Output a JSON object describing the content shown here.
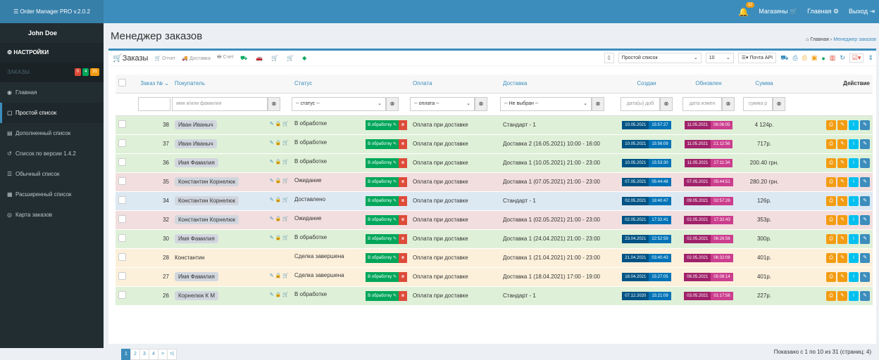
{
  "app": {
    "brand": "Order Manager PRO v.2.0.2"
  },
  "topnav": {
    "bell_count": "12",
    "shops": "Магазины",
    "home": "Главная",
    "exit": "Выход"
  },
  "sidebar": {
    "user": "John Doe",
    "settings": "НАСТРОЙКИ",
    "section": "ЗАКАЗЫ",
    "badges": [
      "0",
      "4",
      "31"
    ],
    "items": [
      {
        "label": "Главная",
        "icon": "dashboard-icon"
      },
      {
        "label": "Простой список",
        "icon": "file-icon"
      },
      {
        "label": "Дополненный список",
        "icon": "file-text-icon"
      },
      {
        "label": "Список по версии 1.4.2",
        "icon": "history-icon"
      },
      {
        "label": "Обычный список",
        "icon": "list-icon"
      },
      {
        "label": "Расширенный список",
        "icon": "table-icon"
      },
      {
        "label": "Карта заказов",
        "icon": "map-pin-icon"
      }
    ]
  },
  "page": {
    "title": "Менеджер заказов",
    "crumb_home": "Главная",
    "crumb_current": "Менеджер заказов"
  },
  "toolbar": {
    "orders": "Заказы",
    "report": "Отчет",
    "delivery": "Доставка",
    "invoice": "Счет",
    "view_select": "Простой список",
    "per_page": "10",
    "api": "Почта API"
  },
  "table": {
    "headers": {
      "order": "Заказ №",
      "buyer": "Покупатель",
      "status": "Статус",
      "payment": "Оплата",
      "delivery": "Доставка",
      "created": "Создан",
      "updated": "Обновлен",
      "sum": "Сумма",
      "action": "Действие"
    },
    "filters": {
      "buyer": "имя и/или фамилия",
      "status": "-- статус --",
      "payment": "-- оплата --",
      "delivery": "-- Не выбран --",
      "created": "дата(ы) доб",
      "updated": "дата измен",
      "sum": "сумма р"
    },
    "process_label": "В обработку",
    "rows": [
      {
        "id": "38",
        "buyer": "Иван Иваныч",
        "status": "В обработке",
        "payment": "Оплата при доставке",
        "delivery": "Стандарт - 1",
        "c_date": "10.05.2021",
        "c_time": "15:57:27",
        "u_date": "11.05.2021",
        "u_time": "06:06:05",
        "sum": "4 124р.",
        "color": "g",
        "icons": true
      },
      {
        "id": "37",
        "buyer": "Иван Иваныч",
        "status": "В обработке",
        "payment": "Оплата при доставке",
        "delivery": "Доставка 2 (16.05.2021) 10:00 - 16:00",
        "c_date": "10.05.2021",
        "c_time": "15:56:09",
        "u_date": "11.05.2021",
        "u_time": "21:12:56",
        "sum": "717р.",
        "color": "g",
        "icons": true
      },
      {
        "id": "36",
        "buyer": "Имя Фамилия",
        "status": "В обработке",
        "payment": "Оплата при доставке",
        "delivery": "Доставка 1 (10.05.2021) 21:00 - 23:00",
        "c_date": "10.05.2021",
        "c_time": "15:53:30",
        "u_date": "11.05.2021",
        "u_time": "17:11:34",
        "sum": "200.40 грн.",
        "color": "g",
        "icons": true
      },
      {
        "id": "35",
        "buyer": "Константин Корнелюк",
        "status": "Ожидание",
        "payment": "Оплата при доставке",
        "delivery": "Доставка 1 (07.05.2021) 21:00 - 23:00",
        "c_date": "07.05.2021",
        "c_time": "05:44:48",
        "u_date": "07.05.2021",
        "u_time": "05:44:51",
        "sum": "280.20 грн.",
        "color": "r",
        "icons": true
      },
      {
        "id": "34",
        "buyer": "Константин Корнелюк",
        "status": "Доставлено",
        "payment": "Оплата при доставке",
        "delivery": "Стандарт - 1",
        "c_date": "02.05.2021",
        "c_time": "18:40:47",
        "u_date": "09.05.2021",
        "u_time": "02:57:26",
        "sum": "126р.",
        "color": "b",
        "icons": true
      },
      {
        "id": "32",
        "buyer": "Константин Корнелюк",
        "status": "Ожидание",
        "payment": "Оплата при доставке",
        "delivery": "Доставка 1 (02.05.2021) 21:00 - 23:00",
        "c_date": "02.05.2021",
        "c_time": "17:32:41",
        "u_date": "02.05.2021",
        "u_time": "17:32:43",
        "sum": "353р.",
        "color": "r",
        "icons": true
      },
      {
        "id": "30",
        "buyer": "Имя Фамилия",
        "status": "В обработке",
        "payment": "Оплата при доставке",
        "delivery": "Доставка 1 (24.04.2021) 21:00 - 23:00",
        "c_date": "23.04.2021",
        "c_time": "22:52:59",
        "u_date": "02.05.2021",
        "u_time": "06:26:56",
        "sum": "300р.",
        "color": "g",
        "icons": true
      },
      {
        "id": "28",
        "buyer": "Константин",
        "status": "Сделка завершена",
        "payment": "Оплата при доставке",
        "delivery": "Доставка 1 (21.04.2021) 21:00 - 23:00",
        "c_date": "21.04.2021",
        "c_time": "03:40:43",
        "u_date": "02.05.2021",
        "u_time": "06:32:08",
        "sum": "401р.",
        "color": "y",
        "icons": false
      },
      {
        "id": "27",
        "buyer": "Имя Фамилия",
        "status": "Сделка завершена",
        "payment": "Оплата при доставке",
        "delivery": "Доставка 1 (18.04.2021) 17:00 - 19:00",
        "c_date": "18.04.2021",
        "c_time": "15:27:05",
        "u_date": "06.05.2021",
        "u_time": "05:08:14",
        "sum": "401р.",
        "color": "y",
        "icons": true
      },
      {
        "id": "26",
        "buyer": "Корнелюк К М",
        "status": "В обработке",
        "payment": "Оплата при доставке",
        "delivery": "Стандарт - 1",
        "c_date": "07.12.2020",
        "c_time": "15:21:09",
        "u_date": "03.05.2021",
        "u_time": "01:17:56",
        "sum": "227р.",
        "color": "g",
        "icons": true
      }
    ]
  },
  "pagination": {
    "pages": [
      "1",
      "2",
      "3",
      "4",
      ">",
      ">|"
    ],
    "info": "Показано с 1 по 10 из 31 (страниц: 4)"
  }
}
